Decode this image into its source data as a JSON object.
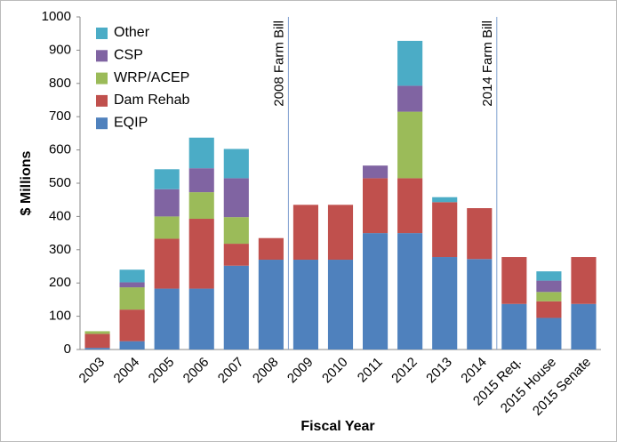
{
  "chart_data": {
    "type": "stacked_bar",
    "x_label": "Fiscal Year",
    "y_label": "$ Millions",
    "categories": [
      "2003",
      "2004",
      "2005",
      "2006",
      "2007",
      "2008",
      "2009",
      "2010",
      "2011",
      "2012",
      "2013",
      "2014",
      "2015 Req.",
      "2015 House",
      "2015 Senate"
    ],
    "series": [
      {
        "name": "EQIP",
        "color": "#4f81bd",
        "values": [
          5,
          25,
          183,
          183,
          252,
          270,
          270,
          270,
          350,
          350,
          278,
          272,
          137,
          95,
          137
        ]
      },
      {
        "name": "Dam Rehab",
        "color": "#c0504d",
        "values": [
          42,
          95,
          150,
          210,
          66,
          65,
          165,
          165,
          165,
          165,
          165,
          153,
          141,
          50,
          141
        ]
      },
      {
        "name": "WRP/ACEP",
        "color": "#9bbb59",
        "values": [
          8,
          67,
          67,
          80,
          80,
          0,
          0,
          0,
          0,
          200,
          0,
          0,
          0,
          28,
          0
        ]
      },
      {
        "name": "CSP",
        "color": "#8064a2",
        "values": [
          0,
          15,
          82,
          72,
          117,
          0,
          0,
          0,
          38,
          78,
          0,
          0,
          0,
          34,
          0
        ]
      },
      {
        "name": "Other",
        "color": "#4bacc6",
        "values": [
          0,
          38,
          60,
          92,
          88,
          0,
          0,
          0,
          0,
          135,
          15,
          0,
          0,
          28,
          0
        ]
      }
    ],
    "ylim": [
      0,
      1000
    ],
    "yticks": [
      0,
      100,
      200,
      300,
      400,
      500,
      600,
      700,
      800,
      900,
      1000
    ],
    "grid": false,
    "legend": "upper-left",
    "annotations": [
      {
        "text": "2008 Farm Bill",
        "after": "2008"
      },
      {
        "text": "2014 Farm Bill",
        "after": "2014"
      }
    ]
  }
}
